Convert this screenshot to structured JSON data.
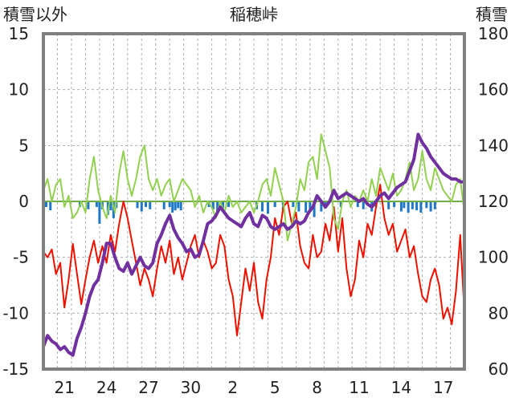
{
  "chart_data": {
    "type": "line",
    "title": "稲穂峠",
    "ylabel_left": "積雪以外",
    "ylabel_right": "積雪",
    "ylim_left": [
      -15,
      15
    ],
    "ylim_right": [
      60,
      180
    ],
    "yticks_left": [
      "15",
      "10",
      "5",
      "0",
      "-5",
      "-10",
      "-15"
    ],
    "yticks_right": [
      "180",
      "160",
      "140",
      "120",
      "100",
      "80",
      "60"
    ],
    "x_range_days": [
      0,
      30
    ],
    "x_tick_labels": [
      {
        "day": 1.5,
        "label": "21"
      },
      {
        "day": 4.5,
        "label": "24"
      },
      {
        "day": 7.5,
        "label": "27"
      },
      {
        "day": 10.5,
        "label": "30"
      },
      {
        "day": 13.5,
        "label": "2"
      },
      {
        "day": 16.5,
        "label": "5"
      },
      {
        "day": 19.5,
        "label": "8"
      },
      {
        "day": 22.5,
        "label": "11"
      },
      {
        "day": 25.5,
        "label": "14"
      },
      {
        "day": 28.5,
        "label": "17"
      }
    ],
    "grid": true,
    "colors": {
      "temperature": "#ee1100",
      "wind": "#92d050",
      "precip": "#1f77c8",
      "snow_depth": "#7030a0",
      "zero_line": "#70ad47",
      "frame": "#808080"
    },
    "series": [
      {
        "key": "temperature",
        "axis": "left",
        "x": [
          0,
          0.3,
          0.6,
          0.9,
          1.2,
          1.5,
          1.8,
          2.1,
          2.4,
          2.7,
          3.0,
          3.3,
          3.6,
          3.9,
          4.2,
          4.5,
          4.8,
          5.1,
          5.4,
          5.7,
          6.0,
          6.3,
          6.6,
          6.9,
          7.2,
          7.5,
          7.8,
          8.1,
          8.4,
          8.7,
          9.0,
          9.3,
          9.6,
          9.9,
          10.2,
          10.5,
          10.8,
          11.1,
          11.4,
          11.7,
          12.0,
          12.3,
          12.6,
          12.9,
          13.2,
          13.5,
          13.8,
          14.1,
          14.4,
          14.7,
          15.0,
          15.3,
          15.6,
          15.9,
          16.2,
          16.5,
          16.8,
          17.1,
          17.4,
          17.7,
          18.0,
          18.3,
          18.6,
          18.9,
          19.2,
          19.5,
          19.8,
          20.1,
          20.4,
          20.7,
          21.0,
          21.3,
          21.6,
          21.9,
          22.2,
          22.5,
          22.8,
          23.1,
          23.4,
          23.7,
          24.0,
          24.3,
          24.6,
          24.9,
          25.2,
          25.5,
          25.8,
          26.1,
          26.4,
          26.7,
          27.0,
          27.3,
          27.6,
          27.9,
          28.2,
          28.5,
          28.8,
          29.1,
          29.4,
          29.7,
          30.0
        ],
        "values": [
          -4.5,
          -5.0,
          -4.3,
          -6.5,
          -5.5,
          -9.5,
          -7.0,
          -3.8,
          -6.5,
          -9.2,
          -7.0,
          -5.0,
          -3.5,
          -5.5,
          -4.0,
          -5.5,
          -3.0,
          -4.5,
          -2.0,
          0.0,
          -1.5,
          -3.5,
          -5.5,
          -7.5,
          -6.0,
          -7.0,
          -8.5,
          -6.0,
          -4.0,
          -5.5,
          -3.5,
          -6.5,
          -5.0,
          -7.0,
          -5.5,
          -4.0,
          -3.0,
          -5.0,
          -3.5,
          -4.5,
          -6.0,
          -5.5,
          -3.0,
          -4.0,
          -7.0,
          -8.5,
          -12.0,
          -9.0,
          -6.0,
          -8.0,
          -5.5,
          -9.0,
          -10.5,
          -7.0,
          -5.0,
          -1.5,
          -3.0,
          -0.5,
          0.0,
          -2.0,
          -1.0,
          -4.0,
          -5.5,
          -6.0,
          -3.0,
          -5.0,
          -4.5,
          -2.0,
          -3.5,
          -0.5,
          -4.5,
          -1.5,
          -6.0,
          -8.5,
          -7.0,
          -3.5,
          -5.0,
          -2.0,
          -3.0,
          -0.5,
          1.5,
          -1.5,
          -3.0,
          -2.0,
          -4.5,
          -3.5,
          -2.5,
          -5.0,
          -4.0,
          -6.5,
          -8.5,
          -9.0,
          -7.0,
          -6.0,
          -7.5,
          -10.5,
          -9.5,
          -11.0,
          -8.0,
          -3.0,
          -10.0
        ]
      },
      {
        "key": "wind",
        "axis": "left",
        "x": [
          0,
          0.3,
          0.6,
          0.9,
          1.2,
          1.5,
          1.8,
          2.1,
          2.4,
          2.7,
          3.0,
          3.3,
          3.6,
          3.9,
          4.2,
          4.5,
          4.8,
          5.1,
          5.4,
          5.7,
          6.0,
          6.3,
          6.6,
          6.9,
          7.2,
          7.5,
          7.8,
          8.1,
          8.4,
          8.7,
          9.0,
          9.3,
          9.6,
          9.9,
          10.2,
          10.5,
          10.8,
          11.1,
          11.4,
          11.7,
          12.0,
          12.3,
          12.6,
          12.9,
          13.2,
          13.5,
          13.8,
          14.1,
          14.4,
          14.7,
          15.0,
          15.3,
          15.6,
          15.9,
          16.2,
          16.5,
          16.8,
          17.1,
          17.4,
          17.7,
          18.0,
          18.3,
          18.6,
          18.9,
          19.2,
          19.5,
          19.8,
          20.1,
          20.4,
          20.7,
          21.0,
          21.3,
          21.6,
          21.9,
          22.2,
          22.5,
          22.8,
          23.1,
          23.4,
          23.7,
          24.0,
          24.3,
          24.6,
          24.9,
          25.2,
          25.5,
          25.8,
          26.1,
          26.4,
          26.7,
          27.0,
          27.3,
          27.6,
          27.9,
          28.2,
          28.5,
          28.8,
          29.1,
          29.4,
          29.7,
          30.0
        ],
        "values": [
          1.0,
          2.0,
          0.0,
          1.5,
          2.0,
          -0.5,
          0.5,
          -1.5,
          -1.0,
          0.0,
          -1.0,
          2.0,
          4.0,
          1.0,
          -0.5,
          -1.5,
          0.5,
          -1.0,
          2.5,
          4.5,
          2.0,
          0.5,
          2.0,
          4.0,
          5.0,
          2.0,
          1.0,
          2.0,
          0.5,
          1.5,
          2.0,
          0.0,
          1.0,
          2.0,
          1.5,
          1.0,
          -0.5,
          0.5,
          -1.0,
          0.0,
          -0.5,
          -1.5,
          0.0,
          -1.0,
          0.5,
          -0.5,
          0.0,
          -1.0,
          -0.5,
          0.0,
          -1.0,
          0.0,
          1.5,
          2.0,
          0.5,
          3.0,
          1.5,
          0.0,
          -3.5,
          -2.0,
          -0.5,
          2.0,
          1.0,
          3.5,
          4.0,
          2.0,
          6.0,
          4.5,
          3.0,
          -1.5,
          -2.5,
          0.0,
          1.0,
          -0.5,
          0.5,
          0.0,
          1.0,
          0.0,
          2.0,
          0.5,
          3.0,
          2.0,
          1.0,
          2.5,
          0.5,
          1.0,
          2.0,
          3.5,
          1.0,
          2.0,
          4.5,
          2.0,
          1.0,
          3.0,
          2.0,
          1.0,
          0.5,
          0.0,
          1.5,
          2.0,
          -1.0
        ]
      },
      {
        "key": "snow_depth",
        "axis": "right",
        "x": [
          0,
          0.3,
          0.6,
          0.9,
          1.2,
          1.5,
          1.8,
          2.1,
          2.4,
          2.7,
          3.0,
          3.3,
          3.6,
          3.9,
          4.2,
          4.5,
          4.8,
          5.1,
          5.4,
          5.7,
          6.0,
          6.3,
          6.6,
          6.9,
          7.2,
          7.5,
          7.8,
          8.1,
          8.4,
          8.7,
          9.0,
          9.3,
          9.6,
          9.9,
          10.2,
          10.5,
          10.8,
          11.1,
          11.4,
          11.7,
          12.0,
          12.3,
          12.6,
          12.9,
          13.2,
          13.5,
          13.8,
          14.1,
          14.4,
          14.7,
          15.0,
          15.3,
          15.6,
          15.9,
          16.2,
          16.5,
          16.8,
          17.1,
          17.4,
          17.7,
          18.0,
          18.3,
          18.6,
          18.9,
          19.2,
          19.5,
          19.8,
          20.1,
          20.4,
          20.7,
          21.0,
          21.3,
          21.6,
          21.9,
          22.2,
          22.5,
          22.8,
          23.1,
          23.4,
          23.7,
          24.0,
          24.3,
          24.6,
          24.9,
          25.2,
          25.5,
          25.8,
          26.1,
          26.4,
          26.7,
          27.0,
          27.3,
          27.6,
          27.9,
          28.2,
          28.5,
          28.8,
          29.1,
          29.4,
          29.7,
          30.0
        ],
        "values": [
          68,
          72,
          70,
          69,
          67,
          68,
          66,
          65,
          71,
          75,
          80,
          86,
          90,
          92,
          98,
          105,
          105,
          100,
          96,
          95,
          98,
          94,
          97,
          100,
          97,
          96,
          98,
          105,
          108,
          112,
          115,
          110,
          107,
          105,
          102,
          103,
          100,
          101,
          106,
          112,
          113,
          115,
          118,
          116,
          114,
          113,
          112,
          111,
          114,
          116,
          112,
          111,
          115,
          114,
          111,
          110,
          111,
          112,
          110,
          111,
          113,
          112,
          113,
          116,
          118,
          122,
          120,
          118,
          120,
          124,
          121,
          122,
          123,
          122,
          121,
          120,
          121,
          119,
          118,
          120,
          122,
          123,
          121,
          123,
          125,
          126,
          127,
          131,
          135,
          144,
          141,
          139,
          136,
          134,
          132,
          130,
          129,
          128,
          128,
          127,
          127
        ]
      }
    ],
    "bars": {
      "key": "precip",
      "axis": "left",
      "x": [
        0.2,
        0.5,
        2.6,
        3.2,
        3.8,
        4.0,
        4.2,
        4.6,
        4.8,
        5.0,
        5.2,
        6.7,
        7.0,
        7.3,
        7.6,
        8.6,
        9.0,
        9.2,
        9.4,
        9.6,
        9.8,
        11.8,
        12.1,
        12.4,
        12.8,
        13.2,
        15.2,
        15.6,
        16.0,
        16.5,
        17.1,
        17.8,
        18.2,
        18.7,
        19.0,
        19.3,
        19.8,
        20.1,
        21.2,
        22.4,
        22.8,
        23.4,
        23.7,
        24.6,
        25.0,
        25.5,
        25.7,
        26.0,
        26.3,
        26.6,
        26.9,
        27.3,
        27.6,
        27.9
      ],
      "values": [
        -0.5,
        -0.8,
        -0.5,
        -0.7,
        -0.5,
        -2.0,
        -0.7,
        -1.2,
        -0.8,
        -1.5,
        -0.6,
        -0.6,
        -0.9,
        -0.5,
        -0.7,
        -0.7,
        -0.5,
        -1.0,
        -0.8,
        -0.6,
        -0.8,
        -0.5,
        -0.7,
        -0.9,
        -0.6,
        -0.5,
        -0.7,
        -0.9,
        -1.1,
        -0.5,
        -0.8,
        -0.5,
        -0.9,
        -1.0,
        -0.8,
        -1.4,
        -0.9,
        -0.5,
        -0.5,
        -0.5,
        -0.7,
        -0.9,
        -0.5,
        -0.7,
        -0.5,
        -0.9,
        -0.6,
        -1.0,
        -0.7,
        -0.8,
        -1.0,
        -0.6,
        -0.9,
        -0.7
      ]
    }
  }
}
